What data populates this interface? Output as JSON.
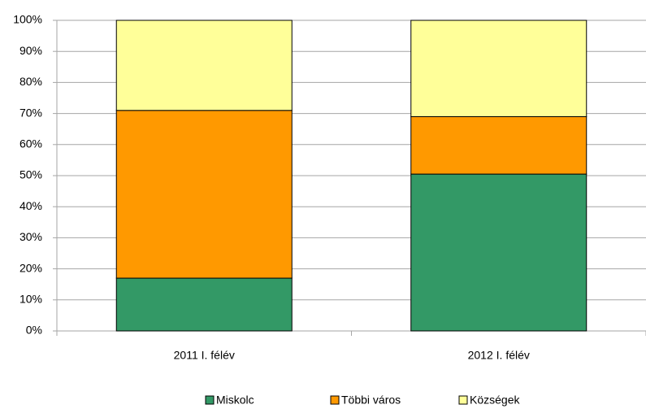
{
  "chart_data": {
    "type": "stacked_bar",
    "categories": [
      "2011 I. félév",
      "2012 I. félév"
    ],
    "series": [
      {
        "name": "Miskolc",
        "color": "#339966",
        "values": [
          17,
          50.5
        ]
      },
      {
        "name": "Többi város",
        "color": "#ff9900",
        "values": [
          54,
          18.5
        ]
      },
      {
        "name": "Községek",
        "color": "#ffff99",
        "values": [
          29,
          31
        ]
      }
    ],
    "ylim": [
      0,
      100
    ],
    "yticks": [
      {
        "value": 0,
        "label": "0%"
      },
      {
        "value": 10,
        "label": "10%"
      },
      {
        "value": 20,
        "label": "20%"
      },
      {
        "value": 30,
        "label": "30%"
      },
      {
        "value": 40,
        "label": "40%"
      },
      {
        "value": 50,
        "label": "50%"
      },
      {
        "value": 60,
        "label": "60%"
      },
      {
        "value": 70,
        "label": "70%"
      },
      {
        "value": 80,
        "label": "80%"
      },
      {
        "value": 90,
        "label": "90%"
      },
      {
        "value": 100,
        "label": "100%"
      }
    ],
    "grid": true,
    "legend": "bottom"
  }
}
